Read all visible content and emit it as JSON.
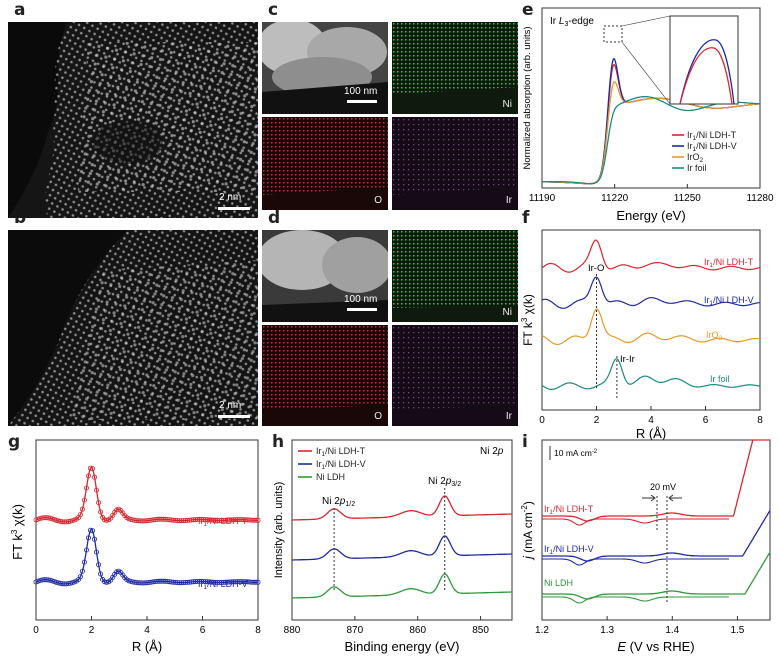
{
  "panels": {
    "a": {
      "label": "a",
      "scalebar": "2 nm"
    },
    "b": {
      "label": "b",
      "scalebar": "2 nm"
    },
    "c": {
      "label": "c",
      "scalebar": "100 nm",
      "maps": [
        "Ni",
        "O",
        "Ir"
      ]
    },
    "d": {
      "label": "d",
      "scalebar": "100 nm",
      "maps": [
        "Ni",
        "O",
        "Ir"
      ]
    },
    "e": {
      "label": "e",
      "edge_label": "Ir L3-edge",
      "edge_prefix": "Ir ",
      "edge_L": "L",
      "edge_sub": "3",
      "edge_suffix": "-edge"
    },
    "f": {
      "label": "f",
      "peak_irO": "Ir-O",
      "peak_irIr": "Ir-Ir"
    },
    "g": {
      "label": "g"
    },
    "h": {
      "label": "h",
      "peak1_main": "Ni 2",
      "peak1_p": "p",
      "peak1_sub": "1/2",
      "peak2_main": "Ni 2",
      "peak2_p": "p",
      "peak2_sub": "3/2",
      "corner_main": "Ni 2",
      "corner_p": "p"
    },
    "i": {
      "label": "i",
      "scale_text": "10 mA cm",
      "scale_sup": "-2",
      "shift": "20 mV"
    }
  },
  "chart_data": [
    {
      "panel": "e",
      "type": "line",
      "xlabel": "Energy (eV)",
      "ylabel": "Normalized absorption (arb. units)",
      "xlim": [
        11190,
        11280
      ],
      "xticks": [
        11190,
        11220,
        11250,
        11280
      ],
      "legend": [
        "Ir1/Ni LDH-T",
        "Ir1/Ni LDH-V",
        "IrO2",
        "Ir foil"
      ],
      "colors": [
        "#d7262f",
        "#1f2aa4",
        "#e5992a",
        "#1a8b7e"
      ],
      "white_line_peak_eV": 11219.5
    },
    {
      "panel": "f",
      "type": "line",
      "xlabel": "R (Å)",
      "ylabel": "FT k3 χ(k)",
      "xlim": [
        0,
        8
      ],
      "xticks": [
        0,
        2,
        4,
        6,
        8
      ],
      "series": [
        "Ir1/Ni LDH-T",
        "Ir1/Ni LDH-V",
        "IrO2",
        "Ir foil"
      ],
      "colors": [
        "#d7262f",
        "#1f2aa4",
        "#e5992a",
        "#1a8b7e"
      ],
      "peaks": {
        "Ir-O": 2.0,
        "Ir-Ir": 2.75
      }
    },
    {
      "panel": "g",
      "type": "line",
      "xlabel": "R (Å)",
      "ylabel": "FT k3 χ(k)",
      "xlim": [
        0,
        8
      ],
      "xticks": [
        0,
        2,
        4,
        6,
        8
      ],
      "series": [
        "Ir1/Ni LDH-T",
        "Ir1/Ni LDH-V"
      ],
      "colors": [
        "#d7262f",
        "#1f2aa4"
      ]
    },
    {
      "panel": "h",
      "type": "line",
      "xlabel": "Binding energy (eV)",
      "ylabel": "Intensity (arb. units)",
      "xlim": [
        880,
        845
      ],
      "xticks": [
        880,
        870,
        860,
        850
      ],
      "legend": [
        "Ir1/Ni LDH-T",
        "Ir1/Ni LDH-V",
        "Ni LDH"
      ],
      "colors": [
        "#d7262f",
        "#1f2aa4",
        "#2f9a3c"
      ],
      "peaks": {
        "Ni 2p1/2": 873.3,
        "Ni 2p3/2": 855.7
      }
    },
    {
      "panel": "i",
      "type": "line",
      "xlabel": "E (V vs RHE)",
      "ylabel": "j (mA cm-2)",
      "xlim": [
        1.2,
        1.55
      ],
      "xticks": [
        1.2,
        1.3,
        1.4,
        1.5
      ],
      "series": [
        "Ir1/Ni LDH-T",
        "Ir1/Ni LDH-V",
        "Ni LDH"
      ],
      "colors": [
        "#d7262f",
        "#1f2aa4",
        "#2f9a3c"
      ],
      "shift_mV": 20
    }
  ]
}
